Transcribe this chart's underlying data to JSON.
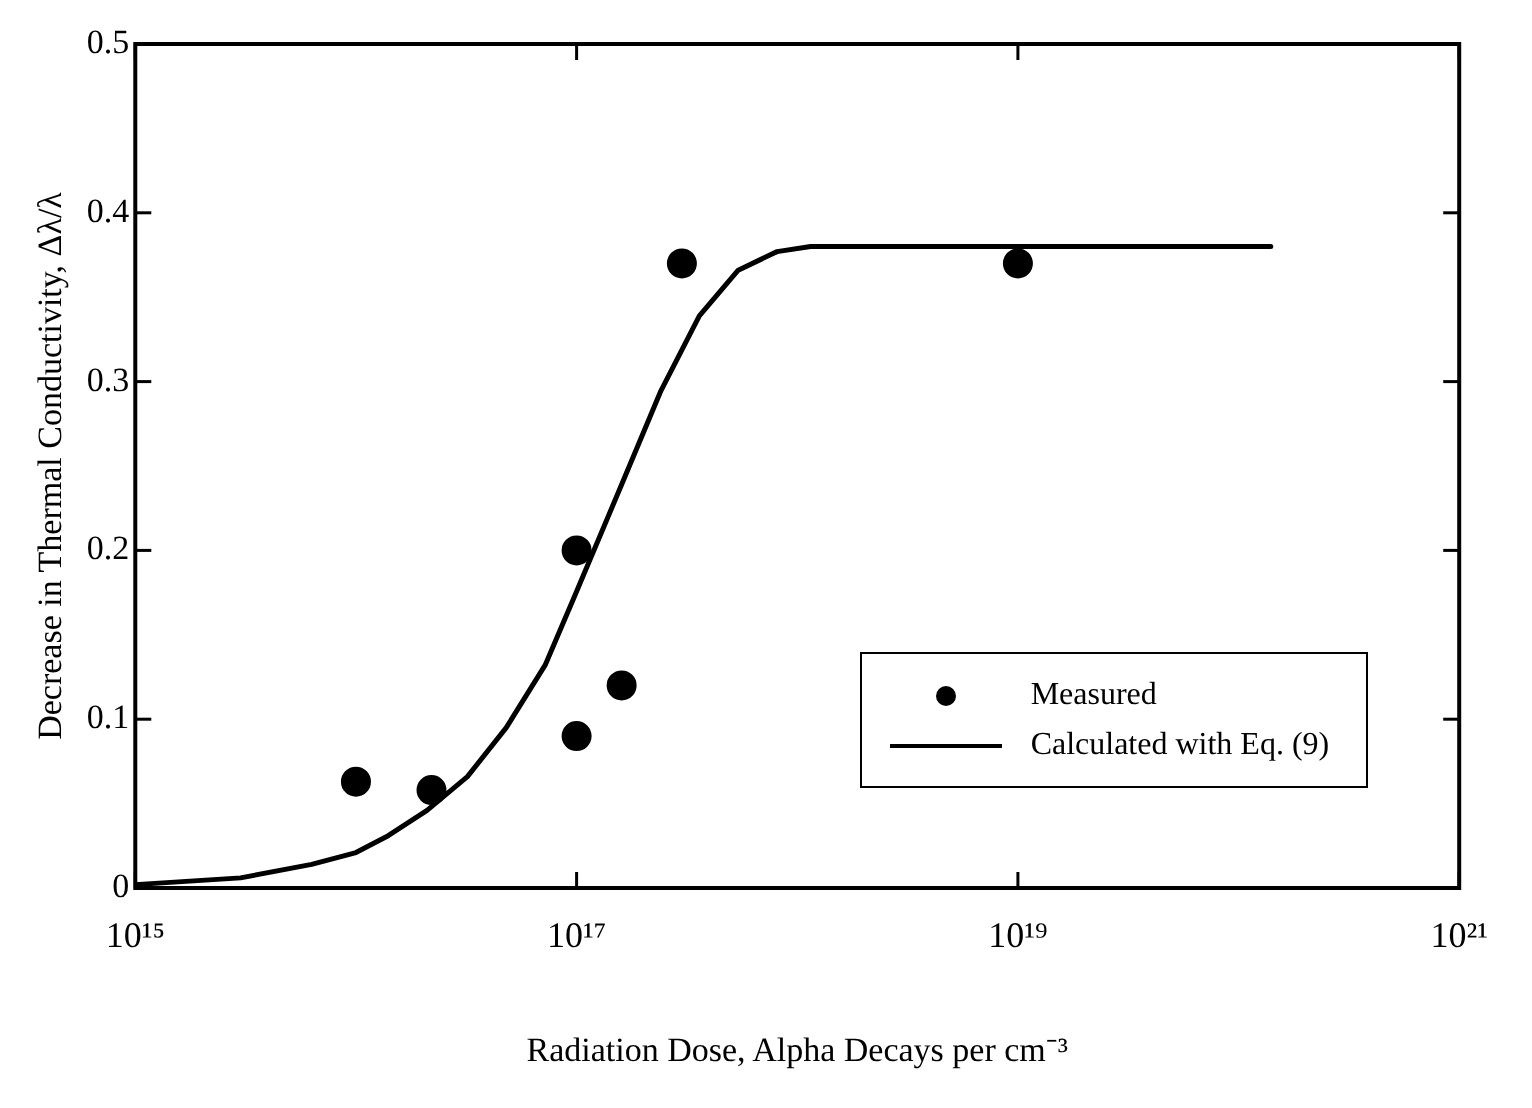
{
  "chart_data": {
    "type": "scatter",
    "xlabel": "Radiation Dose, Alpha Decays per cm⁻³",
    "ylabel": "Decrease in Thermal Conductivity, Δλ/λ",
    "log": "x",
    "grid": false,
    "legend": "bottom right",
    "xlim": [
      1000000000000000.0,
      1e+21
    ],
    "xticks": [
      {
        "value": 1000000000000000.0,
        "label": "10¹⁵"
      },
      {
        "value": 1e+17,
        "label": "10¹⁷"
      },
      {
        "value": 1e+19,
        "label": "10¹⁹"
      },
      {
        "value": 1e+21,
        "label": "10²¹"
      }
    ],
    "ylim": [
      0,
      0.5
    ],
    "yticks": [
      0,
      0.1,
      0.2,
      0.3,
      0.4,
      0.5
    ],
    "series": [
      {
        "name": "Measured",
        "type": "scatter",
        "marker": "circle",
        "color": "#000000",
        "x": [
          1e+16,
          2.2e+16,
          1e+17,
          1e+17,
          1.6e+17,
          3e+17,
          1e+19
        ],
        "values": [
          0.063,
          0.058,
          0.2,
          0.09,
          0.12,
          0.37,
          0.37
        ]
      },
      {
        "name": "Calculated with Eq. (9)",
        "type": "line",
        "marker": "none",
        "line_style": "solid",
        "color": "#000000",
        "x": [
          1000000000000000.0,
          3000000000000000.0,
          6300000000000000.0,
          1e+16,
          1.4e+16,
          2.1e+16,
          3.2e+16,
          4.8e+16,
          7.2e+16,
          9.8e+16,
          1.6e+17,
          2.4e+17,
          3.6e+17,
          5.4e+17,
          8.1e+17,
          1.15e+18,
          1.4e+20
        ],
        "values": [
          0.002,
          0.006,
          0.014,
          0.021,
          0.031,
          0.046,
          0.066,
          0.095,
          0.132,
          0.173,
          0.239,
          0.294,
          0.339,
          0.366,
          0.377,
          0.38,
          0.38
        ]
      }
    ]
  }
}
